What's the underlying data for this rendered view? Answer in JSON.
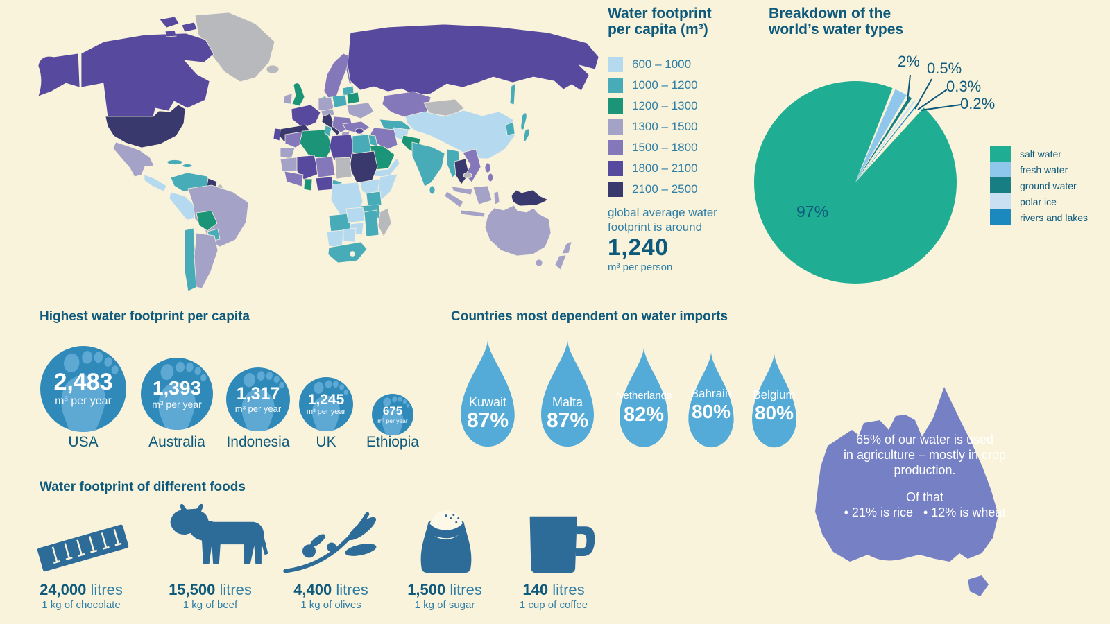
{
  "theme": {
    "bg": "#FAF3DB",
    "ink": "#0E5A7C",
    "ink2": "#2E7EA6",
    "circle_blue": "#2F8ABA",
    "foot_blue": "#5EA8D4",
    "drop_blue": "#55ABD7",
    "food_blue": "#2D6B98",
    "australia_purple": "#7681C5"
  },
  "map_legend": {
    "title_line1": "Water footprint",
    "title_line2": "per capita (m³)",
    "items": [
      {
        "label": "600 – 1000",
        "color": "#B5DAF0"
      },
      {
        "label": "1000 – 1200",
        "color": "#48ACB8"
      },
      {
        "label": "1200 – 1300",
        "color": "#1B9478"
      },
      {
        "label": "1300 – 1500",
        "color": "#A4A2C6"
      },
      {
        "label": "1500 – 1800",
        "color": "#8478BA"
      },
      {
        "label": "1800 – 2100",
        "color": "#57499D"
      },
      {
        "label": "2100 – 2500",
        "color": "#39396E"
      }
    ],
    "note_line1": "global average water",
    "note_line2": "footprint is around",
    "average_value": "1,240",
    "average_unit": "m³ per person"
  },
  "pie": {
    "title_line1": "Breakdown of the",
    "title_line2": "world’s water types",
    "big_label": "97%",
    "callouts": [
      "2%",
      "0.5%",
      "0.3%",
      "0.2%"
    ],
    "legend": [
      {
        "label": "salt water",
        "color": "#1FAE93"
      },
      {
        "label": "fresh water",
        "color": "#8EC6EC"
      },
      {
        "label": "ground water",
        "color": "#177F83"
      },
      {
        "label": "polar ice",
        "color": "#C9DFF2"
      },
      {
        "label": "rivers and lakes",
        "color": "#1B89BD"
      }
    ]
  },
  "footprints": {
    "title": "Highest water footprint per capita",
    "items": [
      {
        "country": "USA",
        "value": "2,483",
        "unit": "m³ per year"
      },
      {
        "country": "Australia",
        "value": "1,393",
        "unit": "m³ per year"
      },
      {
        "country": "Indonesia",
        "value": "1,317",
        "unit": "m³ per year"
      },
      {
        "country": "UK",
        "value": "1,245",
        "unit": "m³ per year"
      },
      {
        "country": "Ethiopia",
        "value": "675",
        "unit": "m³ per year"
      }
    ]
  },
  "imports": {
    "title": "Countries most dependent on water imports",
    "items": [
      {
        "country": "Kuwait",
        "pct": "87%"
      },
      {
        "country": "Malta",
        "pct": "87%"
      },
      {
        "country": "Netherlands",
        "pct": "82%"
      },
      {
        "country": "Bahrain",
        "pct": "80%"
      },
      {
        "country": "Belgium",
        "pct": "80%"
      }
    ]
  },
  "australia": {
    "line1": "65% of our water is used",
    "line2": "in agriculture – mostly in crop",
    "line3": "production.",
    "of_that": "Of that",
    "bullet1": "• 21% is rice",
    "bullet2": "• 12% is wheat"
  },
  "foods": {
    "title": "Water footprint of different foods",
    "items": [
      {
        "value": "24,000",
        "unit": " litres",
        "label": "1 kg of chocolate",
        "icon": "chocolate-bar-icon"
      },
      {
        "value": "15,500",
        "unit": " litres",
        "label": "1 kg of beef",
        "icon": "cow-icon"
      },
      {
        "value": "4,400",
        "unit": " litres",
        "label": "1 kg of olives",
        "icon": "olive-branch-icon"
      },
      {
        "value": "1,500",
        "unit": " litres",
        "label": "1 kg of sugar",
        "icon": "sugar-sack-icon"
      },
      {
        "value": "140",
        "unit": " litres",
        "label": "1 cup of coffee",
        "icon": "coffee-mug-icon"
      }
    ]
  },
  "chart_data": [
    {
      "type": "choropleth",
      "title": "Water footprint per capita (m³)",
      "categories": [
        "600 – 1000",
        "1000 – 1200",
        "1200 – 1300",
        "1300 – 1500",
        "1500 – 1800",
        "1800 – 2100",
        "2100 – 2500"
      ],
      "global_average": 1240,
      "unit": "m³ per person",
      "legend_colors": {
        "600-1000": "#B5DAF0",
        "1000-1200": "#48ACB8",
        "1200-1300": "#1B9478",
        "1300-1500": "#A4A2C6",
        "1500-1800": "#8478BA",
        "1800-2100": "#57499D",
        "2100-2500": "#39396E",
        "no-data": "#B7B9BC"
      },
      "regions": {
        "greenland": "no-data",
        "iceland": "no-data",
        "alaska": "1800-2100",
        "canada": "1800-2100",
        "usa": "2100-2500",
        "mexico": "1300-1500",
        "central-america": "600-1000",
        "caribbean": "1000-1200",
        "colombia-venezuela": "1000-1200",
        "guyana": "2100-2500",
        "suriname": "no-data",
        "peru": "600-1000",
        "brazil": "1300-1500",
        "bolivia": "1200-1300",
        "paraguay": "1000-1200",
        "chile": "1000-1200",
        "argentina": "1300-1500",
        "uk": "1200-1300",
        "ireland": "1300-1500",
        "norway-sweden": "1500-1800",
        "finland": "1500-1800",
        "denmark": "1000-1200",
        "baltics": "1000-1200",
        "germany": "1300-1500",
        "poland": "1000-1200",
        "belarus": "1200-1300",
        "ukraine": "1300-1500",
        "france": "1800-2100",
        "spain": "2100-2500",
        "portugal": "1800-2100",
        "italy": "2100-2500",
        "alpine": "1300-1500",
        "balkans": "1500-1800",
        "greece": "1300-1500",
        "russia": "1800-2100",
        "sakhalin": "1000-1200",
        "kazakhstan": "1500-1800",
        "uzbek-turkmen": "1000-1200",
        "kyrgyz": "1500-1800",
        "mongolia": "no-data",
        "china": "600-1000",
        "korea": "1000-1200",
        "japan": "1000-1200",
        "afghanistan": "600-1000",
        "pakistan": "1200-1300",
        "india": "1000-1200",
        "sri-lanka": "1000-1200",
        "iran": "1500-1800",
        "turkey": "1500-1800",
        "iraq": "1000-1200",
        "syria": "1800-2100",
        "saudi-arabia": "1200-1300",
        "yemen-oman": "600-1000",
        "morocco": "1500-1800",
        "w-sahara": "1300-1500",
        "algeria": "1200-1300",
        "tunisia": "1000-1200",
        "libya": "1800-2100",
        "egypt": "1000-1200",
        "sudan": "2100-2500",
        "mauritania": "1300-1500",
        "mali": "1800-2100",
        "niger": "1500-1800",
        "chad": "no-data",
        "nigeria": "1800-2100",
        "ghana": "1200-1300",
        "west-africa": "1500-1800",
        "cameroon": "1000-1200",
        "ethiopia": "600-1000",
        "somalia": "600-1000",
        "kenya": "1000-1200",
        "tanzania": "1000-1200",
        "drc": "600-1000",
        "angola": "1000-1200",
        "zambia": "600-1000",
        "mozambique": "1000-1200",
        "zimbabwe": "600-1000",
        "namibia": "600-1000",
        "botswana": "600-1000",
        "south-africa": "1000-1200",
        "madagascar": "no-data",
        "myanmar": "1000-1200",
        "thailand": "2100-2500",
        "laos-vietnam": "1500-1800",
        "cambodia": "no-data",
        "malaysia": "1300-1500",
        "sumatra": "1300-1500",
        "java": "1300-1500",
        "borneo": "1300-1500",
        "sulawesi": "1300-1500",
        "philippines": "1500-1800",
        "png": "2100-2500",
        "australia-map": "1300-1500",
        "tasmania": "1300-1500",
        "new-zealand": "1300-1500"
      }
    },
    {
      "type": "pie",
      "title": "Breakdown of the world’s water types",
      "slices": [
        {
          "label": "salt water",
          "value": 97,
          "color": "#1FAE93"
        },
        {
          "label": "fresh water",
          "value": 2,
          "color": "#8EC6EC"
        },
        {
          "label": "ground water",
          "value": 0.5,
          "color": "#177F83"
        },
        {
          "label": "polar ice",
          "value": 0.3,
          "color": "#C9DFF2"
        },
        {
          "label": "rivers and lakes",
          "value": 0.2,
          "color": "#1B89BD"
        }
      ],
      "legend_position": "right"
    },
    {
      "type": "proportional-circle",
      "title": "Highest water footprint per capita",
      "categories": [
        "USA",
        "Australia",
        "Indonesia",
        "UK",
        "Ethiopia"
      ],
      "values": [
        2483,
        1393,
        1317,
        1245,
        675
      ],
      "unit": "m³ per year"
    },
    {
      "type": "pictogram",
      "title": "Countries most dependent on water imports",
      "categories": [
        "Kuwait",
        "Malta",
        "Netherlands",
        "Bahrain",
        "Belgium"
      ],
      "values": [
        87,
        87,
        82,
        80,
        80
      ],
      "unit": "%",
      "symbol": "water-drop"
    },
    {
      "type": "annotation",
      "title": "Australia water use",
      "facts": [
        {
          "label": "water used in agriculture",
          "value": 65,
          "unit": "%"
        },
        {
          "label": "of that is rice",
          "value": 21,
          "unit": "%"
        },
        {
          "label": "of that is wheat",
          "value": 12,
          "unit": "%"
        }
      ]
    },
    {
      "type": "pictogram",
      "title": "Water footprint of different foods",
      "categories": [
        "1 kg of chocolate",
        "1 kg of beef",
        "1 kg of olives",
        "1 kg of sugar",
        "1 cup of coffee"
      ],
      "values": [
        24000,
        15500,
        4400,
        1500,
        140
      ],
      "unit": "litres"
    }
  ]
}
